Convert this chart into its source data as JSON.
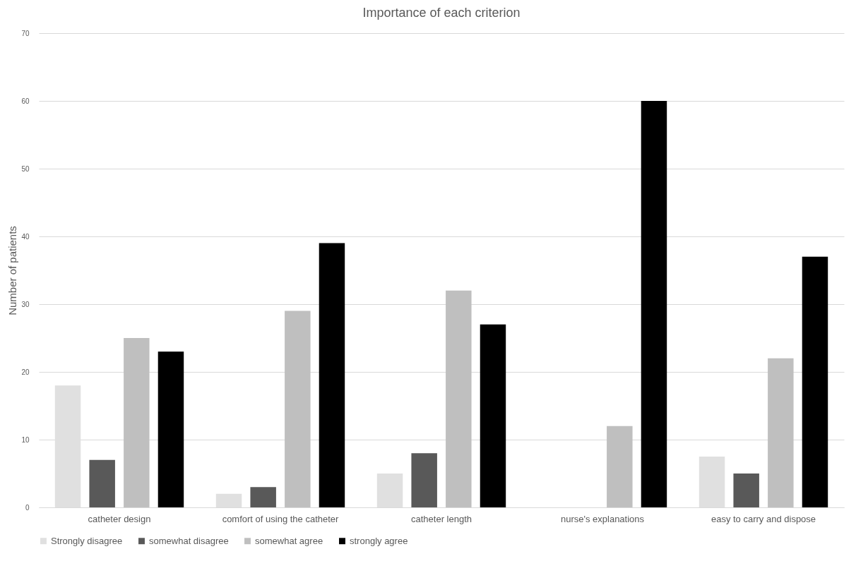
{
  "chart_data": {
    "type": "bar",
    "title": "Importance of each criterion",
    "ylabel": "Number of patients",
    "categories": [
      "catheter design",
      "comfort of using the catheter",
      "catheter length",
      "nurse's explanations",
      "easy to carry and dispose"
    ],
    "series": [
      {
        "name": "Strongly disagree",
        "color": "#e0e0e0",
        "values": [
          18,
          2,
          5,
          0,
          7.5
        ]
      },
      {
        "name": "somewhat disagree",
        "color": "#595959",
        "values": [
          7,
          3,
          8,
          0,
          5
        ]
      },
      {
        "name": "somewhat agree",
        "color": "#bfbfbf",
        "values": [
          25,
          29,
          32,
          12,
          22
        ]
      },
      {
        "name": "strongly agree",
        "color": "#000000",
        "values": [
          23,
          39,
          27,
          60,
          37
        ]
      }
    ],
    "ylim": [
      0,
      70
    ],
    "yticks": [
      0,
      10,
      20,
      30,
      40,
      50,
      60,
      70
    ],
    "grid": "y",
    "legend": "bottom"
  }
}
